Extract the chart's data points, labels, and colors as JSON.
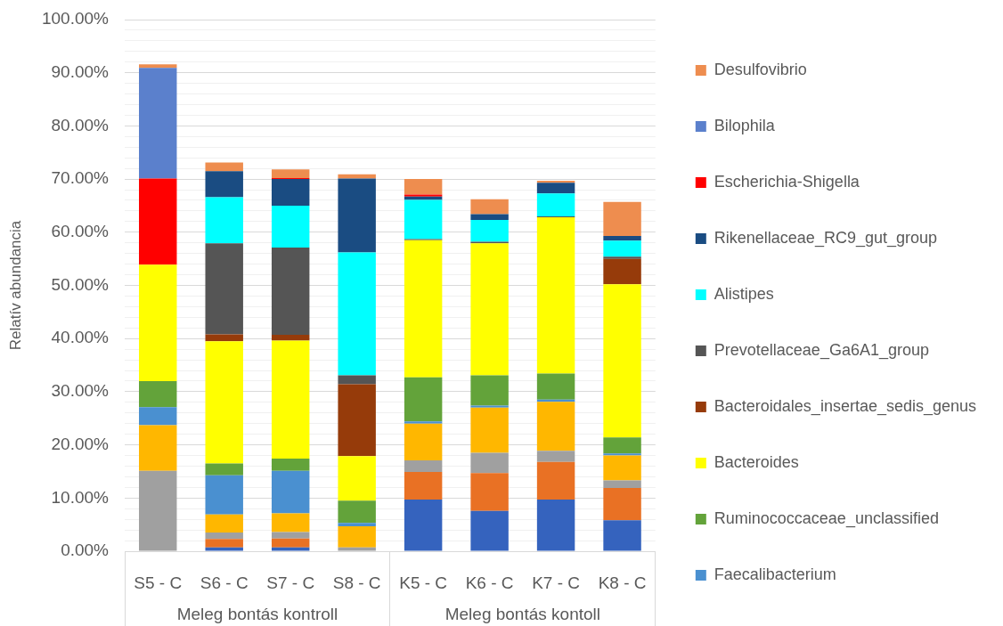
{
  "chart_data": {
    "type": "bar",
    "stacked": true,
    "ylabel": "Relatív abundancia",
    "categories": [
      "S5 - C",
      "S6 - C",
      "S7 - C",
      "S8 - C",
      "K5 - C",
      "K6 - C",
      "K7 - C",
      "K8 - C"
    ],
    "annotations": [
      "Meleg bontás kontroll",
      "Meleg bontás kontoll"
    ],
    "ylim": [
      0,
      100
    ],
    "yticks": [
      {
        "value": 0,
        "label": "0.00%"
      },
      {
        "value": 2,
        "label": null
      },
      {
        "value": 4,
        "label": null
      },
      {
        "value": 6,
        "label": null
      },
      {
        "value": 8,
        "label": null
      },
      {
        "value": 10,
        "label": "10.00%"
      },
      {
        "value": 12,
        "label": null
      },
      {
        "value": 14,
        "label": null
      },
      {
        "value": 16,
        "label": null
      },
      {
        "value": 18,
        "label": null
      },
      {
        "value": 20,
        "label": "20.00%"
      },
      {
        "value": 22,
        "label": null
      },
      {
        "value": 24,
        "label": null
      },
      {
        "value": 26,
        "label": null
      },
      {
        "value": 28,
        "label": null
      },
      {
        "value": 30,
        "label": "30.00%"
      },
      {
        "value": 32,
        "label": null
      },
      {
        "value": 34,
        "label": null
      },
      {
        "value": 36,
        "label": null
      },
      {
        "value": 38,
        "label": null
      },
      {
        "value": 40,
        "label": "40.00%"
      },
      {
        "value": 42,
        "label": null
      },
      {
        "value": 44,
        "label": null
      },
      {
        "value": 46,
        "label": null
      },
      {
        "value": 48,
        "label": null
      },
      {
        "value": 50,
        "label": "50.00%"
      },
      {
        "value": 52,
        "label": null
      },
      {
        "value": 54,
        "label": null
      },
      {
        "value": 56,
        "label": null
      },
      {
        "value": 58,
        "label": null
      },
      {
        "value": 60,
        "label": "60.00%"
      },
      {
        "value": 62,
        "label": null
      },
      {
        "value": 64,
        "label": null
      },
      {
        "value": 66,
        "label": null
      },
      {
        "value": 68,
        "label": null
      },
      {
        "value": 70,
        "label": "70.00%"
      },
      {
        "value": 72,
        "label": null
      },
      {
        "value": 74,
        "label": null
      },
      {
        "value": 76,
        "label": null
      },
      {
        "value": 78,
        "label": null
      },
      {
        "value": 80,
        "label": "80.00%"
      },
      {
        "value": 82,
        "label": null
      },
      {
        "value": 84,
        "label": null
      },
      {
        "value": 86,
        "label": null
      },
      {
        "value": 88,
        "label": null
      },
      {
        "value": 90,
        "label": "90.00%"
      },
      {
        "value": 92,
        "label": null
      },
      {
        "value": 94,
        "label": null
      },
      {
        "value": 96,
        "label": null
      },
      {
        "value": 98,
        "label": null
      },
      {
        "value": 100,
        "label": "100.00%"
      }
    ],
    "grid": "y",
    "legend": "right",
    "series": [
      {
        "color": "#3563be",
        "values": [
          null,
          0.7,
          0.7,
          null,
          9.7,
          7.6,
          9.7,
          5.8
        ]
      },
      {
        "color": "#e97124",
        "values": [
          null,
          1.6,
          1.7,
          null,
          5.2,
          7.1,
          7.1,
          6.1
        ]
      },
      {
        "color": "#a0a0a0",
        "values": [
          15.1,
          1.2,
          1.2,
          0.7,
          2.2,
          3.8,
          2.1,
          1.4
        ]
      },
      {
        "color": "#ffb700",
        "values": [
          8.6,
          3.4,
          3.5,
          4.0,
          6.9,
          8.5,
          9.2,
          4.7
        ]
      },
      {
        "name": "Faecalibacterium",
        "color": "#4a90d0",
        "values": [
          3.4,
          7.4,
          8.0,
          0.6,
          0.4,
          0.4,
          0.4,
          0.4
        ]
      },
      {
        "name": "Ruminococcaceae_unclassified",
        "color": "#63a33a",
        "values": [
          4.9,
          2.2,
          2.3,
          4.2,
          8.3,
          5.7,
          4.9,
          3.0
        ]
      },
      {
        "name": "Bacteroides",
        "color": "#ffff00",
        "values": [
          21.9,
          23.0,
          22.2,
          8.4,
          25.8,
          24.8,
          29.4,
          28.8
        ]
      },
      {
        "name": "Bacteroidales_insertae_sedis_genus",
        "color": "#963b0a",
        "values": [
          null,
          1.3,
          1.1,
          13.5,
          null,
          null,
          null,
          4.8
        ]
      },
      {
        "name": "Prevotellaceae_Ga6A1_group",
        "color": "#555555",
        "values": [
          null,
          17.1,
          16.4,
          1.7,
          0.2,
          0.3,
          0.2,
          0.4
        ]
      },
      {
        "name": "Alistipes",
        "color": "#00ffff",
        "values": [
          null,
          8.7,
          7.9,
          23.1,
          7.4,
          4.1,
          4.3,
          3.0
        ]
      },
      {
        "name": "Rikenellaceae_RC9_gut_group",
        "color": "#1a4c82",
        "values": [
          null,
          4.9,
          5.0,
          13.9,
          0.6,
          1.1,
          2.0,
          0.9
        ]
      },
      {
        "name": "Escherichia-Shigella",
        "color": "#ff0000",
        "values": [
          16.2,
          null,
          0.2,
          null,
          0.4,
          null,
          null,
          null
        ]
      },
      {
        "name": "Bilophila",
        "color": "#5b80cc",
        "values": [
          20.8,
          null,
          null,
          null,
          null,
          null,
          null,
          null
        ]
      },
      {
        "name": "Desulfovibrio",
        "color": "#ee8d4f",
        "values": [
          0.7,
          1.6,
          1.6,
          0.8,
          2.9,
          2.8,
          0.4,
          6.4
        ]
      }
    ]
  }
}
